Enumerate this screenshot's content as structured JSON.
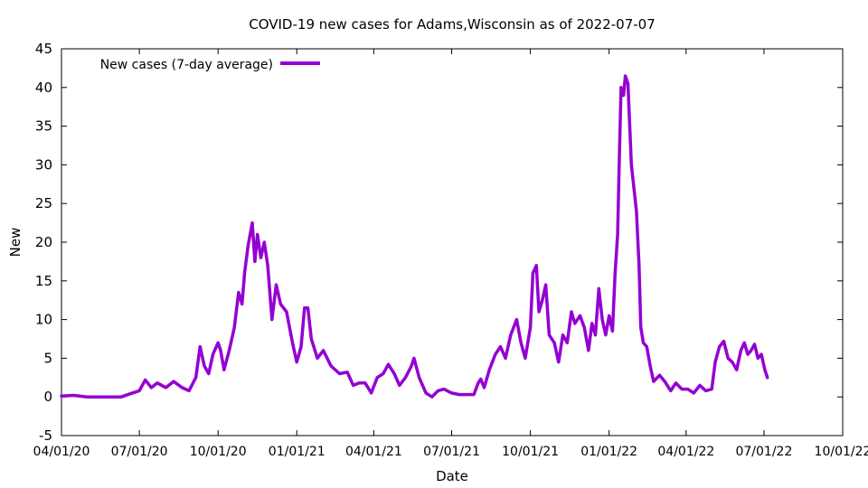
{
  "chart_data": {
    "type": "line",
    "title": "COVID-19 new cases for Adams,Wisconsin as of 2022-07-07",
    "xlabel": "Date",
    "ylabel": "New",
    "xlim": [
      "2020-04-01",
      "2022-10-01"
    ],
    "ylim": [
      -5,
      45
    ],
    "x_ticks": [
      "04/01/20",
      "07/01/20",
      "10/01/20",
      "01/01/21",
      "04/01/21",
      "07/01/21",
      "10/01/21",
      "01/01/22",
      "04/01/22",
      "07/01/22",
      "10/01/22"
    ],
    "x_tick_dates": [
      "2020-04-01",
      "2020-07-01",
      "2020-10-01",
      "2021-01-01",
      "2021-04-01",
      "2021-07-01",
      "2021-10-01",
      "2022-01-01",
      "2022-04-01",
      "2022-07-01",
      "2022-10-01"
    ],
    "y_ticks": [
      -5,
      0,
      5,
      10,
      15,
      20,
      25,
      30,
      35,
      40,
      45
    ],
    "legend_position": "top-left",
    "grid": false,
    "series": [
      {
        "name": "New cases (7-day average)",
        "color": "#9400D3",
        "points": [
          [
            "2020-04-01",
            0.1
          ],
          [
            "2020-04-15",
            0.2
          ],
          [
            "2020-05-01",
            0.0
          ],
          [
            "2020-05-20",
            0.0
          ],
          [
            "2020-06-10",
            0.0
          ],
          [
            "2020-06-20",
            0.4
          ],
          [
            "2020-07-01",
            0.8
          ],
          [
            "2020-07-08",
            2.2
          ],
          [
            "2020-07-15",
            1.2
          ],
          [
            "2020-07-22",
            1.8
          ],
          [
            "2020-08-01",
            1.2
          ],
          [
            "2020-08-10",
            2.0
          ],
          [
            "2020-08-20",
            1.2
          ],
          [
            "2020-08-28",
            0.8
          ],
          [
            "2020-09-05",
            2.5
          ],
          [
            "2020-09-10",
            6.5
          ],
          [
            "2020-09-15",
            4.0
          ],
          [
            "2020-09-20",
            3.0
          ],
          [
            "2020-09-25",
            5.5
          ],
          [
            "2020-10-01",
            7.0
          ],
          [
            "2020-10-04",
            6.0
          ],
          [
            "2020-10-08",
            3.5
          ],
          [
            "2020-10-14",
            6.0
          ],
          [
            "2020-10-20",
            9.0
          ],
          [
            "2020-10-25",
            13.5
          ],
          [
            "2020-10-29",
            12.0
          ],
          [
            "2020-11-01",
            16.0
          ],
          [
            "2020-11-05",
            19.5
          ],
          [
            "2020-11-10",
            22.5
          ],
          [
            "2020-11-13",
            17.5
          ],
          [
            "2020-11-16",
            21.0
          ],
          [
            "2020-11-20",
            18.0
          ],
          [
            "2020-11-24",
            20.0
          ],
          [
            "2020-11-28",
            17.0
          ],
          [
            "2020-12-03",
            10.0
          ],
          [
            "2020-12-08",
            14.5
          ],
          [
            "2020-12-13",
            12.0
          ],
          [
            "2020-12-20",
            11.0
          ],
          [
            "2020-12-27",
            7.0
          ],
          [
            "2021-01-01",
            4.5
          ],
          [
            "2021-01-06",
            6.5
          ],
          [
            "2021-01-10",
            11.5
          ],
          [
            "2021-01-14",
            11.5
          ],
          [
            "2021-01-18",
            7.5
          ],
          [
            "2021-01-25",
            5.0
          ],
          [
            "2021-02-01",
            6.0
          ],
          [
            "2021-02-10",
            4.0
          ],
          [
            "2021-02-20",
            3.0
          ],
          [
            "2021-03-01",
            3.2
          ],
          [
            "2021-03-08",
            1.5
          ],
          [
            "2021-03-15",
            1.8
          ],
          [
            "2021-03-22",
            1.8
          ],
          [
            "2021-03-29",
            0.5
          ],
          [
            "2021-04-05",
            2.5
          ],
          [
            "2021-04-12",
            3.0
          ],
          [
            "2021-04-18",
            4.2
          ],
          [
            "2021-04-25",
            3.0
          ],
          [
            "2021-05-01",
            1.5
          ],
          [
            "2021-05-08",
            2.5
          ],
          [
            "2021-05-15",
            4.0
          ],
          [
            "2021-05-18",
            5.0
          ],
          [
            "2021-05-24",
            2.5
          ],
          [
            "2021-06-01",
            0.5
          ],
          [
            "2021-06-08",
            0.0
          ],
          [
            "2021-06-15",
            0.8
          ],
          [
            "2021-06-22",
            1.0
          ],
          [
            "2021-07-01",
            0.5
          ],
          [
            "2021-07-10",
            0.3
          ],
          [
            "2021-07-20",
            0.3
          ],
          [
            "2021-07-27",
            0.3
          ],
          [
            "2021-08-01",
            1.8
          ],
          [
            "2021-08-04",
            2.3
          ],
          [
            "2021-08-08",
            1.2
          ],
          [
            "2021-08-14",
            3.5
          ],
          [
            "2021-08-21",
            5.5
          ],
          [
            "2021-08-27",
            6.5
          ],
          [
            "2021-09-02",
            5.0
          ],
          [
            "2021-09-08",
            8.0
          ],
          [
            "2021-09-15",
            10.0
          ],
          [
            "2021-09-20",
            7.0
          ],
          [
            "2021-09-25",
            5.0
          ],
          [
            "2021-10-01",
            9.0
          ],
          [
            "2021-10-04",
            16.0
          ],
          [
            "2021-10-08",
            17.0
          ],
          [
            "2021-10-11",
            11.0
          ],
          [
            "2021-10-15",
            12.5
          ],
          [
            "2021-10-19",
            14.5
          ],
          [
            "2021-10-23",
            8.0
          ],
          [
            "2021-10-29",
            7.0
          ],
          [
            "2021-11-03",
            4.5
          ],
          [
            "2021-11-08",
            8.0
          ],
          [
            "2021-11-13",
            7.0
          ],
          [
            "2021-11-18",
            11.0
          ],
          [
            "2021-11-22",
            9.5
          ],
          [
            "2021-11-28",
            10.5
          ],
          [
            "2021-12-03",
            9.0
          ],
          [
            "2021-12-08",
            6.0
          ],
          [
            "2021-12-12",
            9.5
          ],
          [
            "2021-12-16",
            8.0
          ],
          [
            "2021-12-20",
            14.0
          ],
          [
            "2021-12-24",
            10.0
          ],
          [
            "2021-12-28",
            8.0
          ],
          [
            "2022-01-01",
            10.5
          ],
          [
            "2022-01-05",
            8.5
          ],
          [
            "2022-01-08",
            16.0
          ],
          [
            "2022-01-11",
            21.0
          ],
          [
            "2022-01-13",
            31.0
          ],
          [
            "2022-01-15",
            40.0
          ],
          [
            "2022-01-18",
            39.0
          ],
          [
            "2022-01-20",
            41.5
          ],
          [
            "2022-01-23",
            40.5
          ],
          [
            "2022-01-27",
            30.0
          ],
          [
            "2022-01-30",
            27.0
          ],
          [
            "2022-02-02",
            24.0
          ],
          [
            "2022-02-05",
            17.0
          ],
          [
            "2022-02-07",
            9.0
          ],
          [
            "2022-02-10",
            7.0
          ],
          [
            "2022-02-14",
            6.5
          ],
          [
            "2022-02-18",
            4.0
          ],
          [
            "2022-02-22",
            2.0
          ],
          [
            "2022-03-01",
            2.8
          ],
          [
            "2022-03-07",
            2.0
          ],
          [
            "2022-03-14",
            0.8
          ],
          [
            "2022-03-20",
            1.8
          ],
          [
            "2022-03-27",
            1.0
          ],
          [
            "2022-04-03",
            1.0
          ],
          [
            "2022-04-10",
            0.5
          ],
          [
            "2022-04-17",
            1.5
          ],
          [
            "2022-04-24",
            0.8
          ],
          [
            "2022-05-01",
            1.0
          ],
          [
            "2022-05-05",
            4.5
          ],
          [
            "2022-05-10",
            6.5
          ],
          [
            "2022-05-15",
            7.2
          ],
          [
            "2022-05-20",
            5.0
          ],
          [
            "2022-05-25",
            4.5
          ],
          [
            "2022-05-30",
            3.5
          ],
          [
            "2022-06-04",
            6.0
          ],
          [
            "2022-06-08",
            7.0
          ],
          [
            "2022-06-12",
            5.5
          ],
          [
            "2022-06-16",
            6.0
          ],
          [
            "2022-06-20",
            6.8
          ],
          [
            "2022-06-24",
            5.0
          ],
          [
            "2022-06-28",
            5.5
          ],
          [
            "2022-07-02",
            3.5
          ],
          [
            "2022-07-05",
            2.5
          ]
        ]
      }
    ]
  }
}
